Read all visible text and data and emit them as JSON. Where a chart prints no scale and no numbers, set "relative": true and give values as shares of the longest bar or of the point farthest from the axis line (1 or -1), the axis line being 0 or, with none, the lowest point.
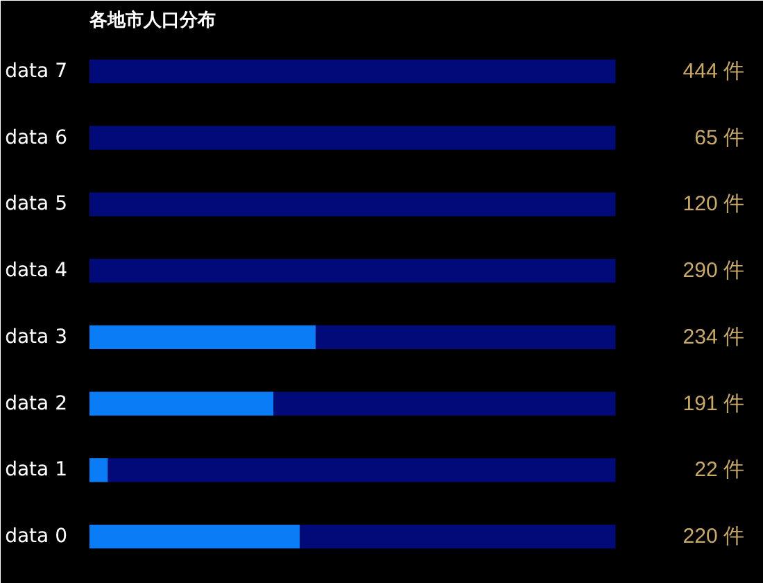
{
  "chart_data": {
    "type": "bar",
    "orientation": "horizontal",
    "relative": true,
    "stacked": true,
    "title": "各地市人口分布",
    "categories": [
      "data 7",
      "data 6",
      "data 5",
      "data 4",
      "data 3",
      "data 2",
      "data 1",
      "data 0"
    ],
    "series": [
      {
        "color": "#0a7cf5",
        "values": [
          null,
          null,
          null,
          null,
          0.43,
          0.35,
          0.035,
          0.4
        ]
      },
      {
        "color": "#000a78",
        "values": [
          1,
          1,
          1,
          1,
          0.57,
          0.65,
          0.965,
          0.6
        ]
      }
    ],
    "annotations": [
      "444 件",
      "65 件",
      "120 件",
      "290 件",
      "234 件",
      "191 件",
      "22 件",
      "220 件"
    ]
  }
}
